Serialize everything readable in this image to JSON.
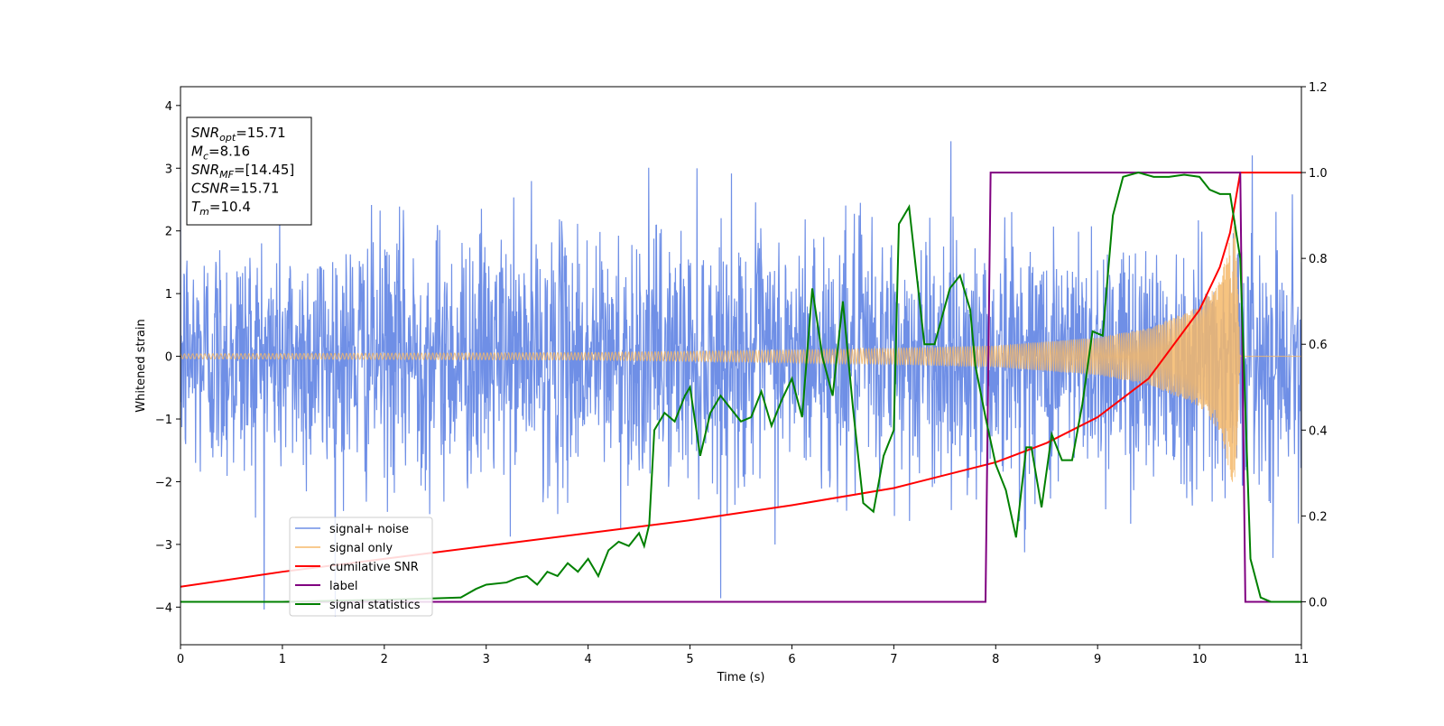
{
  "chart_data": {
    "type": "line",
    "xlabel": "Time (s)",
    "ylabel": "Whitened strain",
    "xlim": [
      0,
      11
    ],
    "ylim_left": [
      -4.6,
      4.3
    ],
    "ylim_right": [
      -0.1,
      1.2
    ],
    "x_ticks": [
      "0",
      "1",
      "2",
      "3",
      "4",
      "5",
      "6",
      "7",
      "8",
      "9",
      "10",
      "11"
    ],
    "y_left_ticks": [
      "4",
      "3",
      "2",
      "1",
      "0",
      "−1",
      "−2",
      "−3",
      "−4"
    ],
    "y_right_ticks": [
      "1.2",
      "1.0",
      "0.8",
      "0.6",
      "0.4",
      "0.2",
      "0.0"
    ],
    "grid": false,
    "legend_position": "lower-left",
    "info_box": [
      {
        "base": "SNR",
        "sub": "opt",
        "text": "=15.71"
      },
      {
        "base": "M",
        "sub": "c",
        "text": "=8.16"
      },
      {
        "base": "SNR",
        "sub": "MF",
        "text": "=[14.45]"
      },
      {
        "base": "CSNR",
        "sub": "",
        "text": "=15.71"
      },
      {
        "base": "T",
        "sub": "m",
        "text": "=10.4"
      }
    ],
    "series": [
      {
        "name": "signal+ noise",
        "color": "#6f8fe6",
        "axis": "left",
        "kind": "noise",
        "amplitude_std": 1.0,
        "x_range": [
          0,
          11
        ]
      },
      {
        "name": "signal only",
        "color": "#f5b86a",
        "axis": "left",
        "kind": "chirp",
        "merger_time": 10.4,
        "envelope": [
          [
            0,
            0.04
          ],
          [
            4,
            0.06
          ],
          [
            6,
            0.1
          ],
          [
            7,
            0.13
          ],
          [
            8,
            0.17
          ],
          [
            9,
            0.3
          ],
          [
            9.5,
            0.45
          ],
          [
            10,
            0.8
          ],
          [
            10.2,
            1.2
          ],
          [
            10.35,
            2.2
          ],
          [
            10.4,
            0
          ]
        ]
      },
      {
        "name": "cumilative SNR",
        "color": "#ff0000",
        "axis": "right",
        "x": [
          0,
          1,
          2,
          3,
          4,
          5,
          6,
          7,
          8,
          8.5,
          9,
          9.5,
          10,
          10.2,
          10.3,
          10.35,
          10.4,
          11
        ],
        "y": [
          0.035,
          0.07,
          0.1,
          0.13,
          0.16,
          0.19,
          0.225,
          0.265,
          0.325,
          0.37,
          0.43,
          0.52,
          0.68,
          0.78,
          0.86,
          0.93,
          1.0,
          1.0
        ]
      },
      {
        "name": "label",
        "color": "#800080",
        "axis": "right",
        "x": [
          0,
          7.9,
          7.95,
          10.4,
          10.45,
          11
        ],
        "y": [
          0.0,
          0.0,
          1.0,
          1.0,
          0.0,
          0.0
        ]
      },
      {
        "name": "signal statistics",
        "color": "#008000",
        "axis": "right",
        "x": [
          0,
          1,
          2,
          2.5,
          2.75,
          2.9,
          3,
          3.2,
          3.3,
          3.4,
          3.5,
          3.6,
          3.7,
          3.8,
          3.9,
          4,
          4.1,
          4.2,
          4.3,
          4.4,
          4.5,
          4.55,
          4.6,
          4.65,
          4.75,
          4.85,
          4.95,
          5,
          5.1,
          5.2,
          5.3,
          5.4,
          5.5,
          5.6,
          5.7,
          5.8,
          5.9,
          6,
          6.1,
          6.2,
          6.3,
          6.4,
          6.5,
          6.6,
          6.7,
          6.8,
          6.9,
          7,
          7.05,
          7.15,
          7.3,
          7.4,
          7.55,
          7.65,
          7.75,
          7.8,
          7.9,
          8,
          8.1,
          8.2,
          8.3,
          8.35,
          8.45,
          8.55,
          8.65,
          8.75,
          8.85,
          8.95,
          9.05,
          9.15,
          9.25,
          9.4,
          9.55,
          9.7,
          9.85,
          10,
          10.1,
          10.2,
          10.3,
          10.4,
          10.5,
          10.6,
          10.7,
          11
        ],
        "y": [
          0.0,
          0.0,
          0.005,
          0.008,
          0.01,
          0.03,
          0.04,
          0.045,
          0.055,
          0.06,
          0.04,
          0.07,
          0.06,
          0.09,
          0.07,
          0.1,
          0.06,
          0.12,
          0.14,
          0.13,
          0.16,
          0.13,
          0.18,
          0.4,
          0.44,
          0.42,
          0.48,
          0.5,
          0.34,
          0.44,
          0.48,
          0.45,
          0.42,
          0.43,
          0.49,
          0.41,
          0.47,
          0.52,
          0.43,
          0.73,
          0.57,
          0.48,
          0.7,
          0.45,
          0.23,
          0.21,
          0.34,
          0.4,
          0.88,
          0.92,
          0.6,
          0.6,
          0.73,
          0.76,
          0.68,
          0.55,
          0.43,
          0.32,
          0.26,
          0.15,
          0.36,
          0.36,
          0.22,
          0.39,
          0.33,
          0.33,
          0.46,
          0.63,
          0.62,
          0.9,
          0.99,
          1.0,
          0.99,
          0.99,
          0.995,
          0.99,
          0.96,
          0.95,
          0.95,
          0.8,
          0.1,
          0.01,
          0.0,
          0.0
        ]
      }
    ]
  }
}
